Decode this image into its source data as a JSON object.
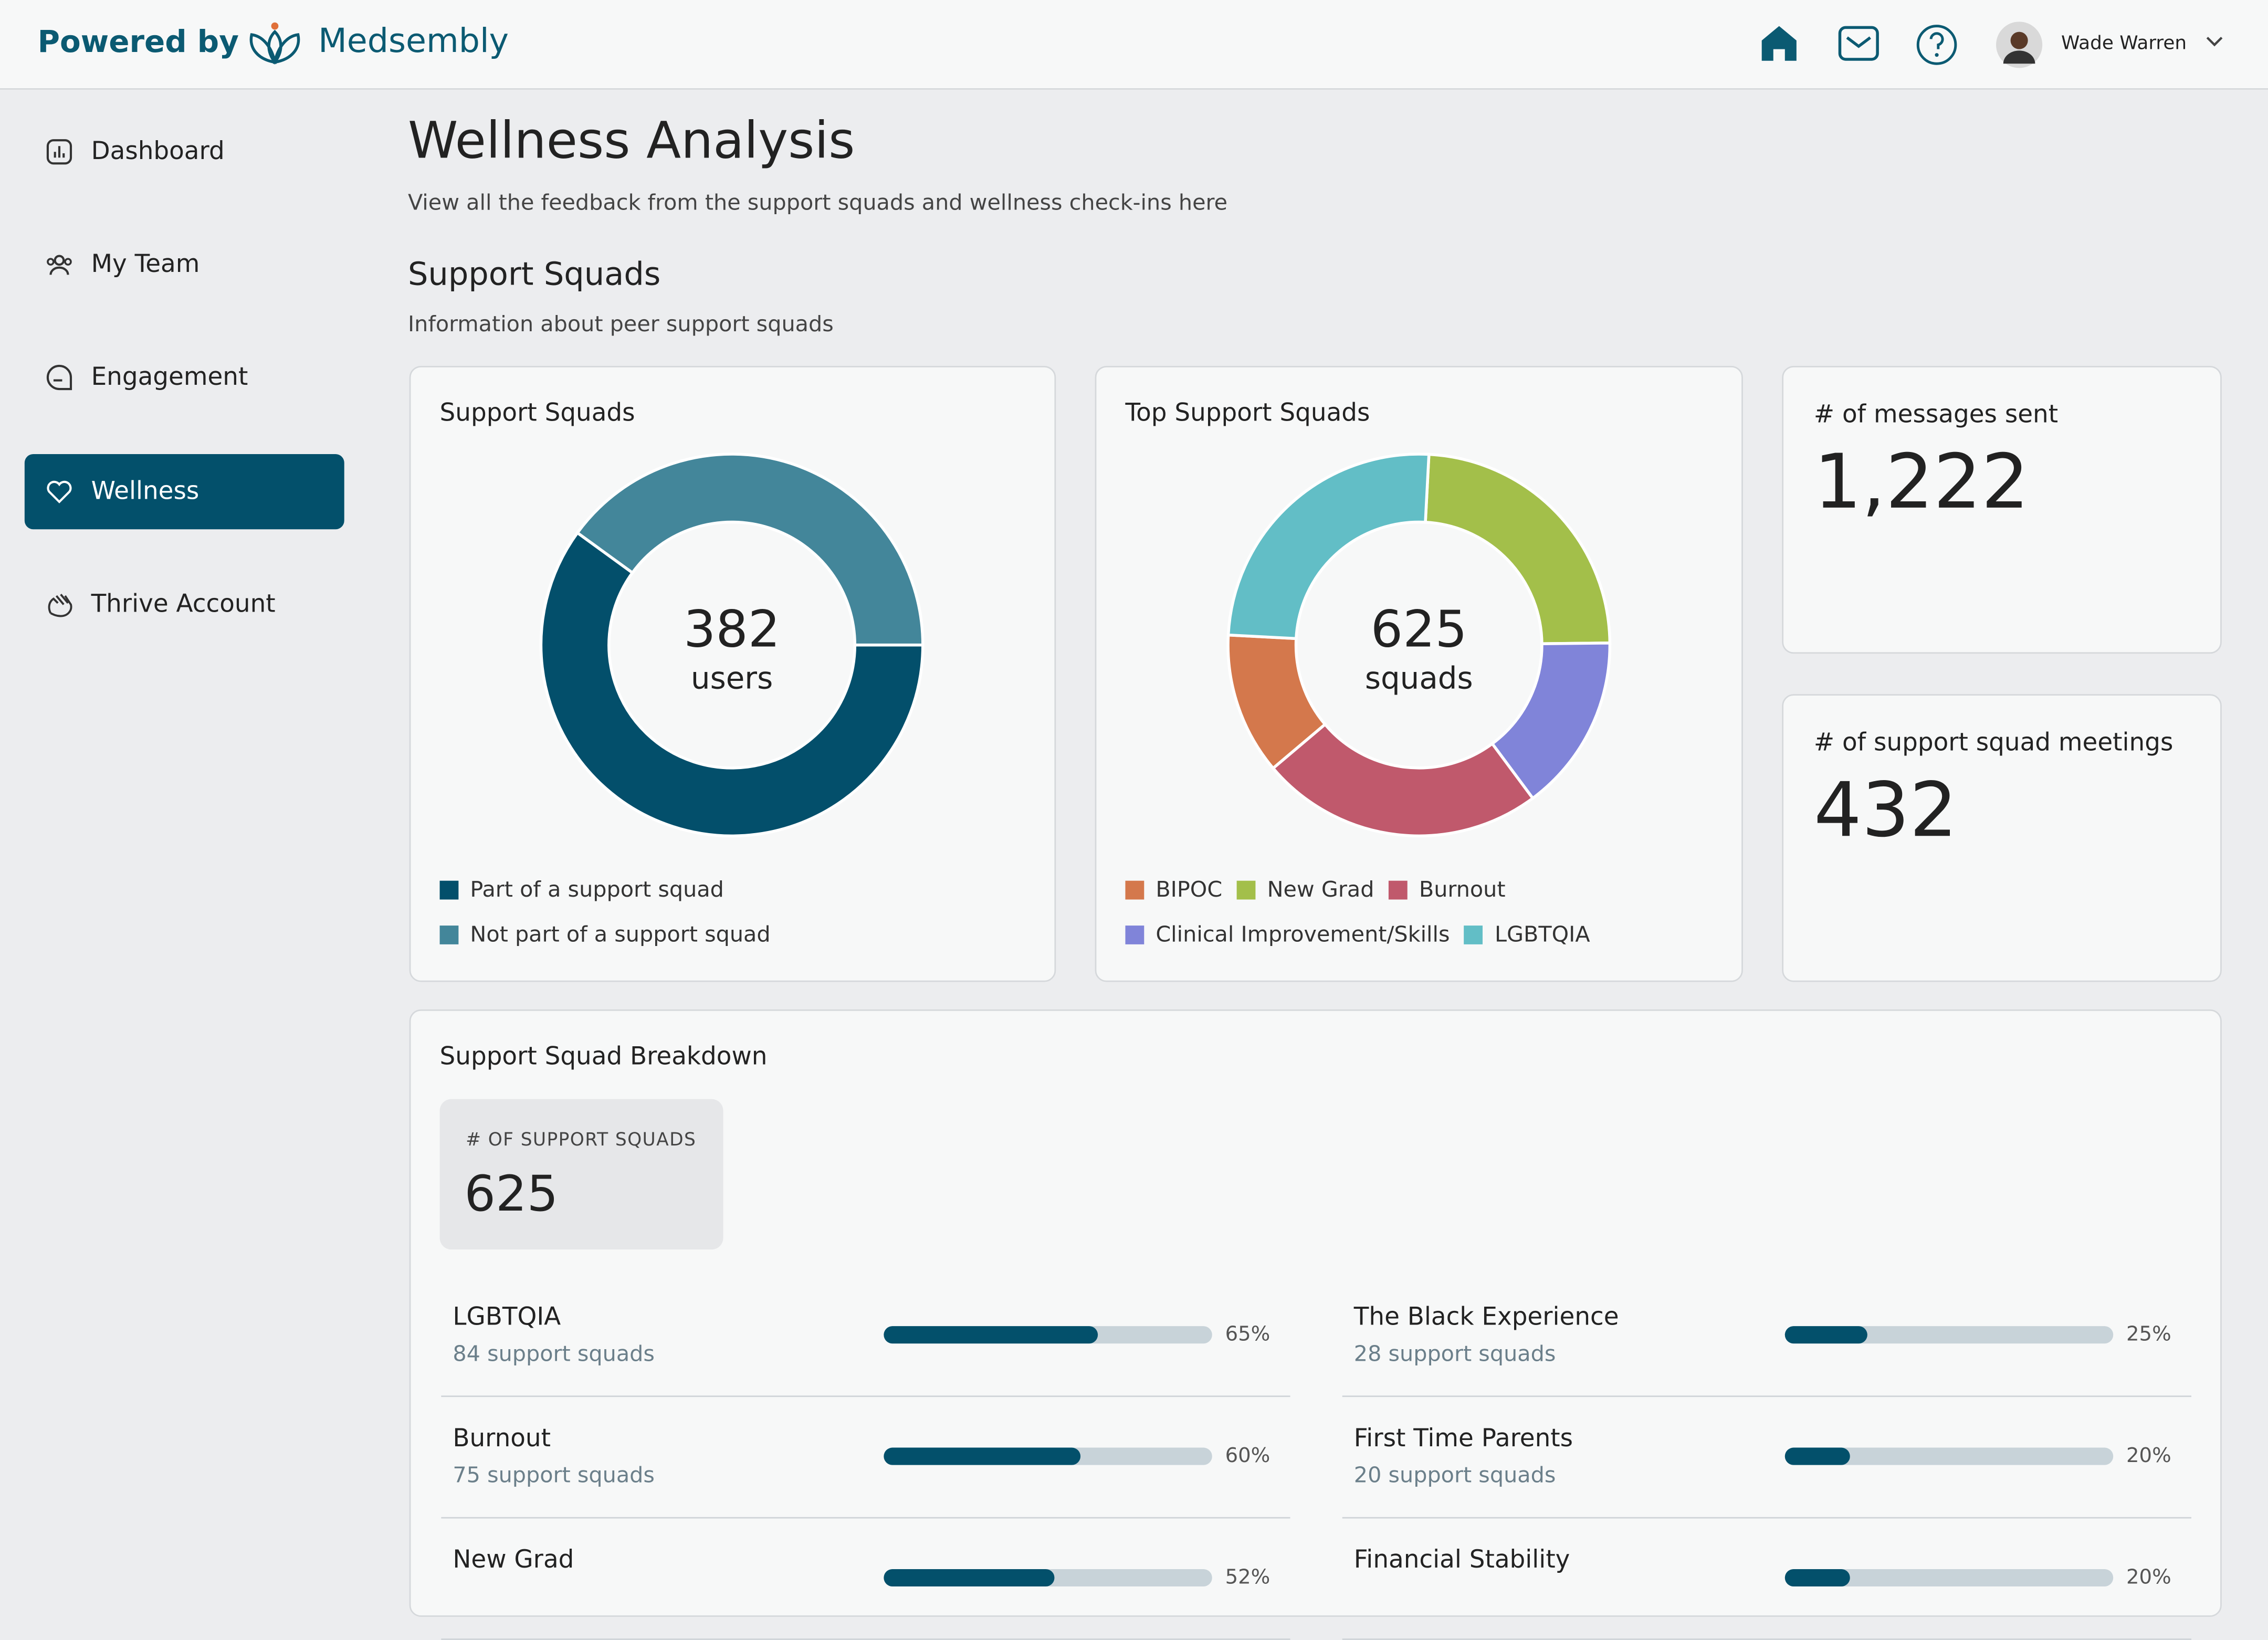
{
  "header": {
    "brand_prefix": "Powered by",
    "brand": "Medsembly",
    "user": "Wade Warren"
  },
  "nav": {
    "items": [
      "Dashboard",
      "My Team",
      "Engagement",
      "Wellness",
      "Thrive Account"
    ],
    "active": 3
  },
  "page": {
    "title": "Wellness Analysis",
    "subtitle": "View all the feedback from the support squads and wellness check-ins here",
    "section_title": "Support Squads",
    "section_subtitle": "Information about peer support squads"
  },
  "chart_data": [
    {
      "type": "donut",
      "title": "Support Squads",
      "center_value": "382",
      "center_label": "users",
      "categories": [
        "Part of a support squad",
        "Not part of a support squad"
      ],
      "values": [
        60,
        40
      ],
      "colors": [
        "#034f6b",
        "#43869a"
      ]
    },
    {
      "type": "donut",
      "title": "Top Support Squads",
      "center_value": "625",
      "center_label": "squads",
      "categories": [
        "BIPOC",
        "New Grad",
        "Burnout",
        "Clinical Improvement/Skills",
        "LGBTQIA"
      ],
      "values": [
        12,
        24,
        24,
        15,
        25
      ],
      "colors": [
        "#d4784c",
        "#a3bf4a",
        "#c0596c",
        "#8084d9",
        "#62bec6"
      ]
    }
  ],
  "stats": [
    {
      "label": "# of messages sent",
      "value": "1,222"
    },
    {
      "label": "# of support squad meetings",
      "value": "432"
    }
  ],
  "breakdown": {
    "title": "Support Squad Breakdown",
    "kpi_label": "# OF SUPPORT SQUADS",
    "kpi_value": "625",
    "items": [
      {
        "name": "LGBTQIA",
        "count": "84 support squads",
        "pct": 65,
        "pct_label": "65%"
      },
      {
        "name": "The Black Experience",
        "count": "28 support squads",
        "pct": 25,
        "pct_label": "25%"
      },
      {
        "name": "Burnout",
        "count": "75 support squads",
        "pct": 60,
        "pct_label": "60%"
      },
      {
        "name": "First Time Parents",
        "count": "20 support squads",
        "pct": 20,
        "pct_label": "20%"
      },
      {
        "name": "New Grad",
        "pct": 52,
        "pct_label": "52%"
      },
      {
        "name": "Financial Stability",
        "pct": 20,
        "pct_label": "20%"
      }
    ]
  }
}
